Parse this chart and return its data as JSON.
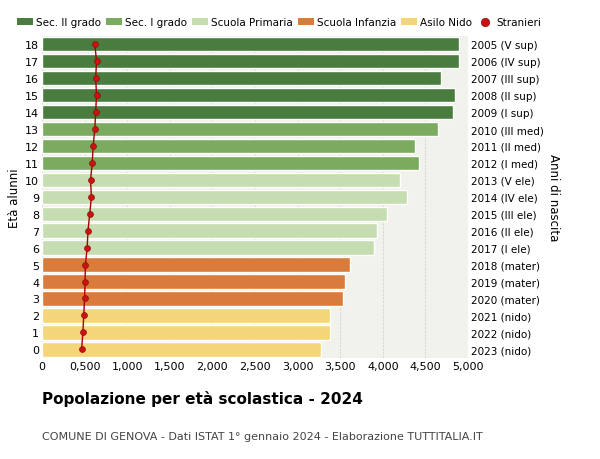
{
  "ages": [
    18,
    17,
    16,
    15,
    14,
    13,
    12,
    11,
    10,
    9,
    8,
    7,
    6,
    5,
    4,
    3,
    2,
    1,
    0
  ],
  "right_labels": [
    "2005 (V sup)",
    "2006 (IV sup)",
    "2007 (III sup)",
    "2008 (II sup)",
    "2009 (I sup)",
    "2010 (III med)",
    "2011 (II med)",
    "2012 (I med)",
    "2013 (V ele)",
    "2014 (IV ele)",
    "2015 (III ele)",
    "2016 (II ele)",
    "2017 (I ele)",
    "2018 (mater)",
    "2019 (mater)",
    "2020 (mater)",
    "2021 (nido)",
    "2022 (nido)",
    "2023 (nido)"
  ],
  "bar_values": [
    4900,
    4900,
    4680,
    4850,
    4820,
    4650,
    4380,
    4430,
    4200,
    4280,
    4050,
    3930,
    3900,
    3620,
    3560,
    3530,
    3380,
    3380,
    3280
  ],
  "bar_colors": [
    "#4a7c3f",
    "#4a7c3f",
    "#4a7c3f",
    "#4a7c3f",
    "#4a7c3f",
    "#7aab5f",
    "#7aab5f",
    "#7aab5f",
    "#c5ddb0",
    "#c5ddb0",
    "#c5ddb0",
    "#c5ddb0",
    "#c5ddb0",
    "#d97b3a",
    "#d97b3a",
    "#d97b3a",
    "#f5d57a",
    "#f5d57a",
    "#f5d57a"
  ],
  "stranieri_values": [
    620,
    640,
    630,
    640,
    630,
    620,
    600,
    590,
    570,
    580,
    560,
    540,
    530,
    510,
    505,
    500,
    490,
    480,
    465
  ],
  "xlim": [
    0,
    5000
  ],
  "xticks": [
    0,
    500,
    1000,
    1500,
    2000,
    2500,
    3000,
    3500,
    4000,
    4500,
    5000
  ],
  "ylabel_left": "Età alunni",
  "ylabel_right": "Anni di nascita",
  "title": "Popolazione per età scolastica - 2024",
  "subtitle": "COMUNE DI GENOVA - Dati ISTAT 1° gennaio 2024 - Elaborazione TUTTITALIA.IT",
  "legend_labels": [
    "Sec. II grado",
    "Sec. I grado",
    "Scuola Primaria",
    "Scuola Infanzia",
    "Asilo Nido",
    "Stranieri"
  ],
  "legend_colors": [
    "#4a7c3f",
    "#7aab5f",
    "#c5ddb0",
    "#d97b3a",
    "#f5d57a",
    "#cc1111"
  ],
  "bg_color": "#ffffff",
  "plot_bg_color": "#f2f2ec",
  "grid_color": "#cccccc",
  "bar_edge_color": "#ffffff",
  "title_fontsize": 11,
  "subtitle_fontsize": 8,
  "axis_fontsize": 8,
  "legend_fontsize": 7.5,
  "bar_height": 0.85
}
